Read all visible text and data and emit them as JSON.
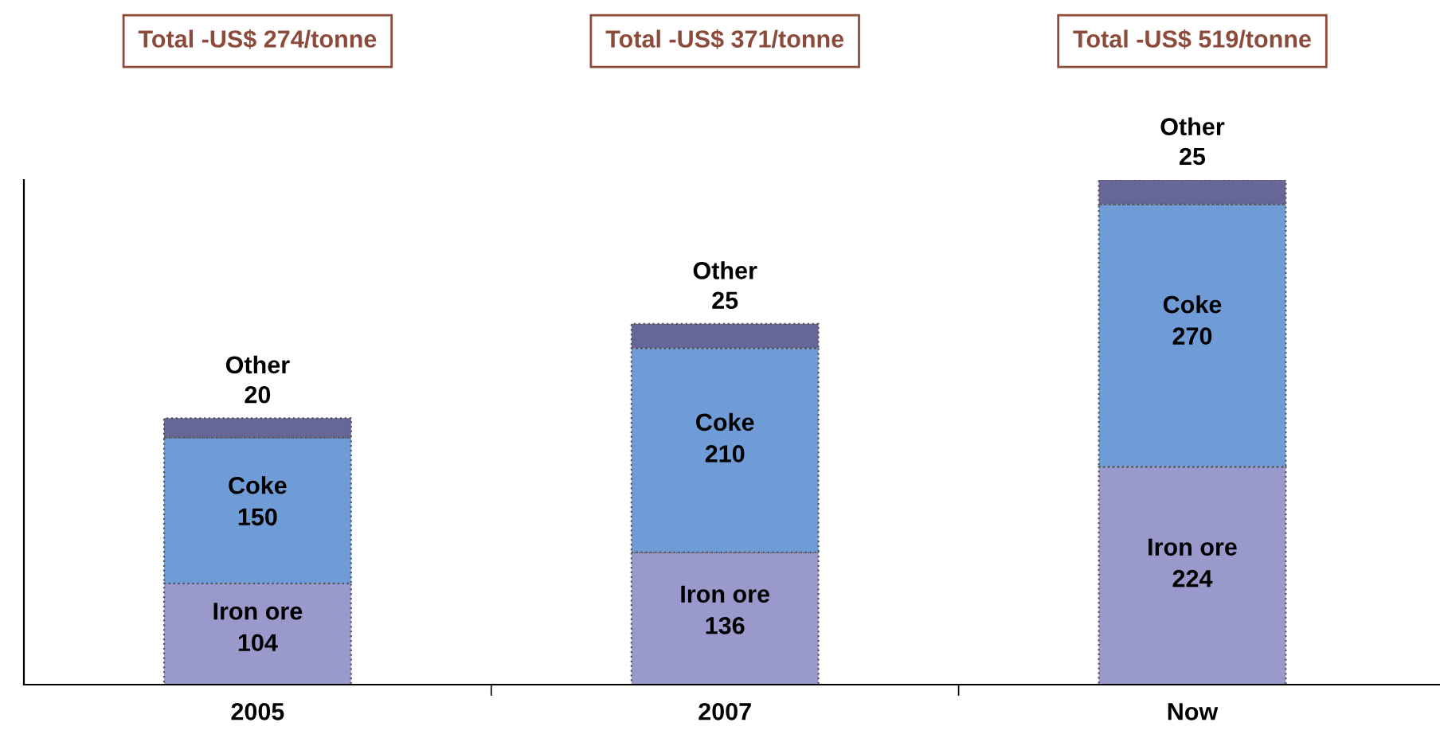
{
  "chart_data": {
    "type": "bar",
    "stacked": true,
    "data_labels": true,
    "categories": [
      "2005",
      "2007",
      "Now"
    ],
    "series": [
      {
        "name": "Iron ore",
        "color": "#9999cc",
        "values": [
          104,
          136,
          224
        ]
      },
      {
        "name": "Coke",
        "color": "#6f9bd6",
        "values": [
          150,
          210,
          270
        ]
      },
      {
        "name": "Other",
        "color": "#666699",
        "values": [
          20,
          25,
          25
        ]
      }
    ],
    "annotations": [
      "Total -US$ 274/tonne",
      "Total -US$ 371/tonne",
      "Total -US$ 519/tonne"
    ],
    "tick_labels": "x",
    "legend": false,
    "grid": false
  }
}
